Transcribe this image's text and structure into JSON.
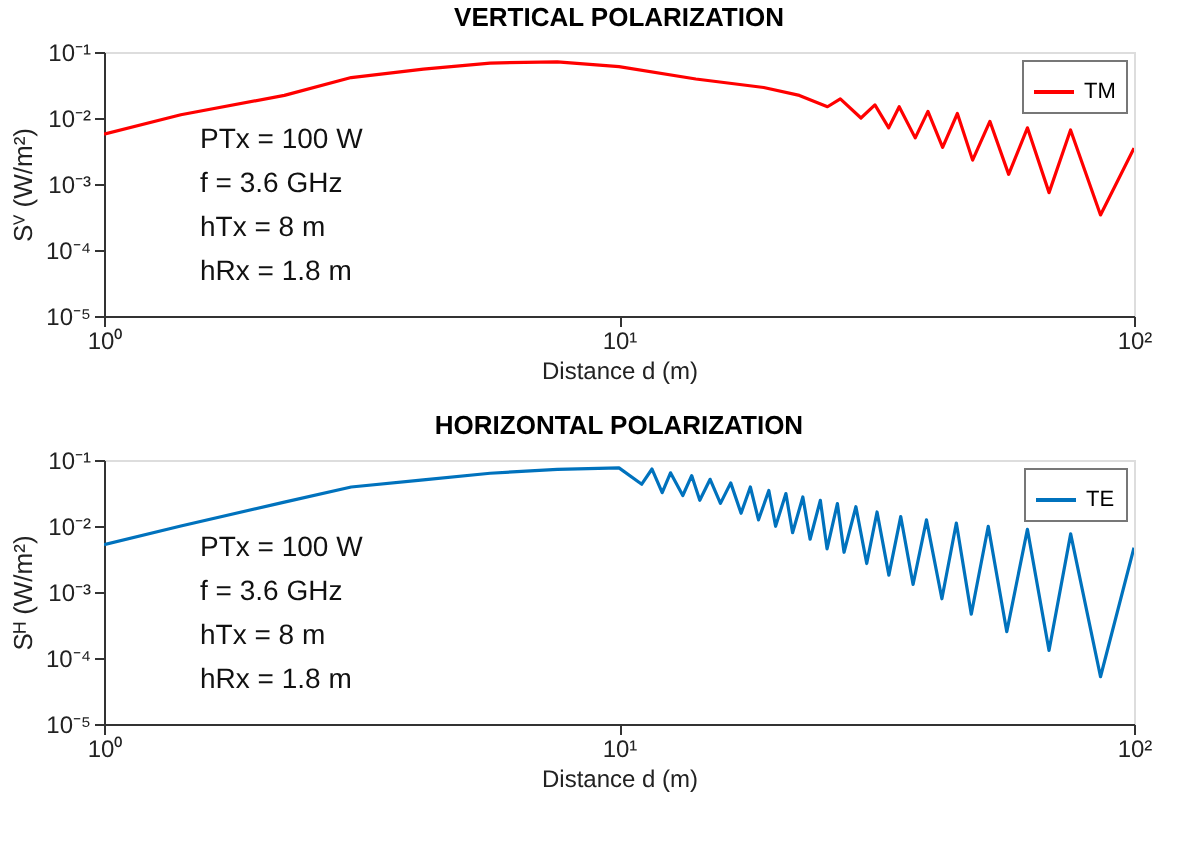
{
  "chart_data": [
    {
      "type": "line",
      "title": "VERTICAL POLARIZATION",
      "xlabel": "Distance d (m)",
      "ylabel": "Sⱽ (W/m²)",
      "log": "xy",
      "grid": false,
      "legend": "top right",
      "marker": "none",
      "line_style": "solid",
      "xlim": [
        1,
        100
      ],
      "ylim": [
        1e-05,
        0.1
      ],
      "xticks": [
        {
          "value": 1,
          "label": "10⁰"
        },
        {
          "value": 10,
          "label": "10¹"
        },
        {
          "value": 100,
          "label": "10²"
        }
      ],
      "yticks": [
        {
          "value": 1e-05,
          "label": "10⁻⁵"
        },
        {
          "value": 0.0001,
          "label": "10⁻⁴"
        },
        {
          "value": 0.001,
          "label": "10⁻³"
        },
        {
          "value": 0.01,
          "label": "10⁻²"
        },
        {
          "value": 0.1,
          "label": "10⁻¹"
        }
      ],
      "annotations": [
        "PTx = 100 W",
        "f = 3.6 GHz",
        "hTx = 8 m",
        "hRx = 1.8 m"
      ],
      "series": [
        {
          "name": "TM",
          "color": "#ff0000",
          "x": [
            1,
            1.41,
            2.24,
            3.02,
            4.17,
            5.62,
            7.59,
            10,
            14.1,
            19.1,
            22.4,
            25.4,
            26.9,
            29.5,
            31.4,
            33.4,
            35.0,
            37.6,
            39.8,
            42.5,
            45.4,
            48.6,
            52.5,
            57.1,
            62.1,
            68.4,
            75.3,
            86.1,
            100
          ],
          "values": [
            0.0057,
            0.0112,
            0.022,
            0.041,
            0.055,
            0.068,
            0.071,
            0.06,
            0.039,
            0.029,
            0.022,
            0.0148,
            0.0195,
            0.01,
            0.0158,
            0.0071,
            0.0148,
            0.005,
            0.0126,
            0.0036,
            0.0117,
            0.0023,
            0.0089,
            0.0014,
            0.0071,
            0.00074,
            0.0066,
            0.00034,
            0.0035
          ]
        }
      ]
    },
    {
      "type": "line",
      "title": "HORIZONTAL POLARIZATION",
      "xlabel": "Distance d (m)",
      "ylabel": "Sᴴ (W/m²)",
      "log": "xy",
      "grid": false,
      "legend": "top right",
      "marker": "none",
      "line_style": "solid",
      "xlim": [
        1,
        100
      ],
      "ylim": [
        1e-05,
        0.1
      ],
      "xticks": [
        {
          "value": 1,
          "label": "10⁰"
        },
        {
          "value": 10,
          "label": "10¹"
        },
        {
          "value": 100,
          "label": "10²"
        }
      ],
      "yticks": [
        {
          "value": 1e-05,
          "label": "10⁻⁵"
        },
        {
          "value": 0.0001,
          "label": "10⁻⁴"
        },
        {
          "value": 0.001,
          "label": "10⁻³"
        },
        {
          "value": 0.01,
          "label": "10⁻²"
        },
        {
          "value": 0.1,
          "label": "10⁻¹"
        }
      ],
      "annotations": [
        "PTx = 100 W",
        "f = 3.6 GHz",
        "hTx = 8 m",
        "hRx = 1.8 m"
      ],
      "series": [
        {
          "name": "TE",
          "color": "#0072bd",
          "x": [
            1,
            1.41,
            2.24,
            3.02,
            4.17,
            5.62,
            7.59,
            10,
            11.07,
            11.59,
            12.13,
            12.59,
            13.3,
            13.84,
            14.35,
            15.03,
            15.74,
            16.48,
            17.26,
            17.99,
            18.66,
            19.54,
            20.14,
            21.09,
            21.73,
            22.75,
            23.5,
            24.6,
            25.35,
            26.55,
            27.35,
            28.84,
            30.27,
            31.7,
            33.42,
            35.24,
            37.24,
            39.54,
            42.36,
            45.19,
            48.31,
            52.12,
            56.62,
            62.09,
            68.39,
            75.34,
            86.1,
            100
          ],
          "values": [
            0.0052,
            0.01,
            0.023,
            0.039,
            0.05,
            0.063,
            0.072,
            0.076,
            0.043,
            0.073,
            0.032,
            0.064,
            0.029,
            0.058,
            0.0245,
            0.051,
            0.022,
            0.045,
            0.0156,
            0.039,
            0.0124,
            0.0345,
            0.0099,
            0.031,
            0.0079,
            0.0275,
            0.0063,
            0.0245,
            0.0045,
            0.0219,
            0.004,
            0.0196,
            0.0027,
            0.0163,
            0.0018,
            0.0139,
            0.0013,
            0.0124,
            0.00079,
            0.0111,
            0.00046,
            0.0099,
            0.00025,
            0.0089,
            0.00013,
            0.0076,
            5.2e-05,
            0.0047
          ]
        }
      ]
    }
  ]
}
